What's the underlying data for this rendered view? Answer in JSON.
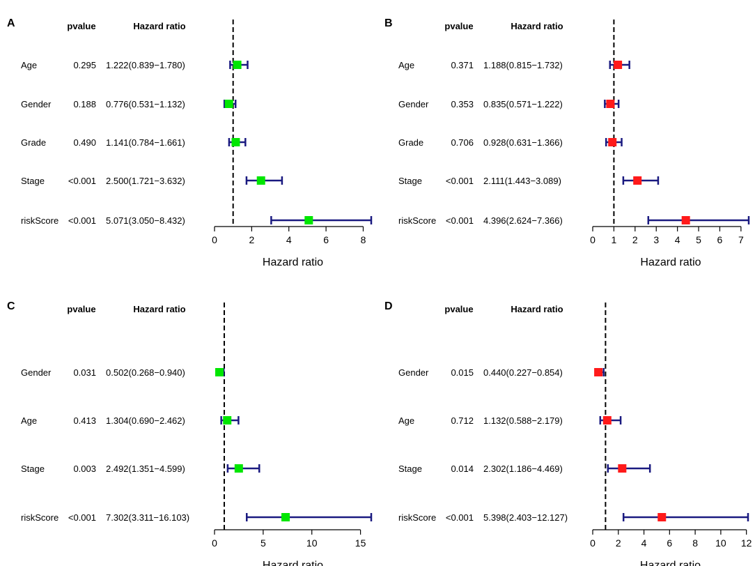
{
  "marker_colors": {
    "green": "#00e600",
    "red": "#ff1a1a"
  },
  "ci_color": "#1a1a80",
  "chart_data": [
    {
      "panel": "A",
      "type": "forest",
      "header_pvalue": "pvalue",
      "header_hr": "Hazard ratio",
      "xlabel": "Hazard ratio",
      "xlim": [
        0,
        8.432
      ],
      "xticks": [
        "0",
        "2",
        "4",
        "6",
        "8"
      ],
      "xtick_values": [
        0,
        2,
        4,
        6,
        8
      ],
      "reference_line": 1,
      "marker_color": "green",
      "rows": [
        {
          "variable": "Age",
          "pvalue": "0.295",
          "hr_text": "1.222(0.839−1.780)",
          "hr": 1.222,
          "lower": 0.839,
          "upper": 1.78
        },
        {
          "variable": "Gender",
          "pvalue": "0.188",
          "hr_text": "0.776(0.531−1.132)",
          "hr": 0.776,
          "lower": 0.531,
          "upper": 1.132
        },
        {
          "variable": "Grade",
          "pvalue": "0.490",
          "hr_text": "1.141(0.784−1.661)",
          "hr": 1.141,
          "lower": 0.784,
          "upper": 1.661
        },
        {
          "variable": "Stage",
          "pvalue": "<0.001",
          "hr_text": "2.500(1.721−3.632)",
          "hr": 2.5,
          "lower": 1.721,
          "upper": 3.632
        },
        {
          "variable": "riskScore",
          "pvalue": "<0.001",
          "hr_text": "5.071(3.050−8.432)",
          "hr": 5.071,
          "lower": 3.05,
          "upper": 8.432
        }
      ]
    },
    {
      "panel": "B",
      "type": "forest",
      "header_pvalue": "pvalue",
      "header_hr": "Hazard ratio",
      "xlabel": "Hazard ratio",
      "xlim": [
        0,
        7.366
      ],
      "xticks": [
        "0",
        "1",
        "2",
        "3",
        "4",
        "5",
        "6",
        "7"
      ],
      "xtick_values": [
        0,
        1,
        2,
        3,
        4,
        5,
        6,
        7
      ],
      "reference_line": 1,
      "marker_color": "red",
      "rows": [
        {
          "variable": "Age",
          "pvalue": "0.371",
          "hr_text": "1.188(0.815−1.732)",
          "hr": 1.188,
          "lower": 0.815,
          "upper": 1.732
        },
        {
          "variable": "Gender",
          "pvalue": "0.353",
          "hr_text": "0.835(0.571−1.222)",
          "hr": 0.835,
          "lower": 0.571,
          "upper": 1.222
        },
        {
          "variable": "Grade",
          "pvalue": "0.706",
          "hr_text": "0.928(0.631−1.366)",
          "hr": 0.928,
          "lower": 0.631,
          "upper": 1.366
        },
        {
          "variable": "Stage",
          "pvalue": "<0.001",
          "hr_text": "2.111(1.443−3.089)",
          "hr": 2.111,
          "lower": 1.443,
          "upper": 3.089
        },
        {
          "variable": "riskScore",
          "pvalue": "<0.001",
          "hr_text": "4.396(2.624−7.366)",
          "hr": 4.396,
          "lower": 2.624,
          "upper": 7.366
        }
      ]
    },
    {
      "panel": "C",
      "type": "forest",
      "header_pvalue": "pvalue",
      "header_hr": "Hazard ratio",
      "xlabel": "Hazard ratio",
      "xlim": [
        0,
        16.103
      ],
      "xticks": [
        "0",
        "5",
        "10",
        "15"
      ],
      "xtick_values": [
        0,
        5,
        10,
        15
      ],
      "reference_line": 1,
      "marker_color": "green",
      "rows": [
        {
          "variable": "Gender",
          "pvalue": "0.031",
          "hr_text": "0.502(0.268−0.940)",
          "hr": 0.502,
          "lower": 0.268,
          "upper": 0.94
        },
        {
          "variable": "Age",
          "pvalue": "0.413",
          "hr_text": "1.304(0.690−2.462)",
          "hr": 1.304,
          "lower": 0.69,
          "upper": 2.462
        },
        {
          "variable": "Stage",
          "pvalue": "0.003",
          "hr_text": "2.492(1.351−4.599)",
          "hr": 2.492,
          "lower": 1.351,
          "upper": 4.599
        },
        {
          "variable": "riskScore",
          "pvalue": "<0.001",
          "hr_text": "7.302(3.311−16.103)",
          "hr": 7.302,
          "lower": 3.311,
          "upper": 16.103
        }
      ]
    },
    {
      "panel": "D",
      "type": "forest",
      "header_pvalue": "pvalue",
      "header_hr": "Hazard ratio",
      "xlabel": "Hazard ratio",
      "xlim": [
        0,
        12.127
      ],
      "xticks": [
        "0",
        "2",
        "4",
        "6",
        "8",
        "10",
        "12"
      ],
      "xtick_values": [
        0,
        2,
        4,
        6,
        8,
        10,
        12
      ],
      "reference_line": 1,
      "marker_color": "red",
      "rows": [
        {
          "variable": "Gender",
          "pvalue": "0.015",
          "hr_text": "0.440(0.227−0.854)",
          "hr": 0.44,
          "lower": 0.227,
          "upper": 0.854
        },
        {
          "variable": "Age",
          "pvalue": "0.712",
          "hr_text": "1.132(0.588−2.179)",
          "hr": 1.132,
          "lower": 0.588,
          "upper": 2.179
        },
        {
          "variable": "Stage",
          "pvalue": "0.014",
          "hr_text": "2.302(1.186−4.469)",
          "hr": 2.302,
          "lower": 1.186,
          "upper": 4.469
        },
        {
          "variable": "riskScore",
          "pvalue": "<0.001",
          "hr_text": "5.398(2.403−12.127)",
          "hr": 5.398,
          "lower": 2.403,
          "upper": 12.127
        }
      ]
    }
  ]
}
